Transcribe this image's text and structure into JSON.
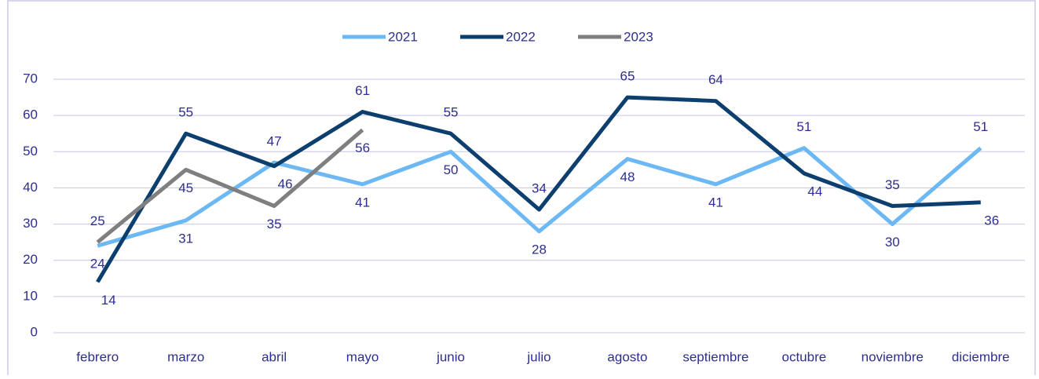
{
  "chart_data": {
    "type": "line",
    "categories": [
      "febrero",
      "marzo",
      "abril",
      "mayo",
      "junio",
      "julio",
      "agosto",
      "septiembre",
      "octubre",
      "noviembre",
      "diciembre"
    ],
    "series": [
      {
        "name": "2021",
        "color": "#6cb8f4",
        "values": [
          24,
          31,
          47,
          41,
          50,
          28,
          48,
          41,
          51,
          30,
          51
        ]
      },
      {
        "name": "2022",
        "color": "#0c3e6e",
        "values": [
          14,
          55,
          46,
          61,
          55,
          34,
          65,
          64,
          44,
          35,
          36
        ]
      },
      {
        "name": "2023",
        "color": "#7f7f7f",
        "values": [
          25,
          45,
          35,
          56,
          null,
          null,
          null,
          null,
          null,
          null,
          null
        ]
      }
    ],
    "ylim": [
      0,
      70
    ],
    "yticks": [
      0,
      10,
      20,
      30,
      40,
      50,
      60,
      70
    ],
    "grid": true,
    "legend": "top"
  }
}
